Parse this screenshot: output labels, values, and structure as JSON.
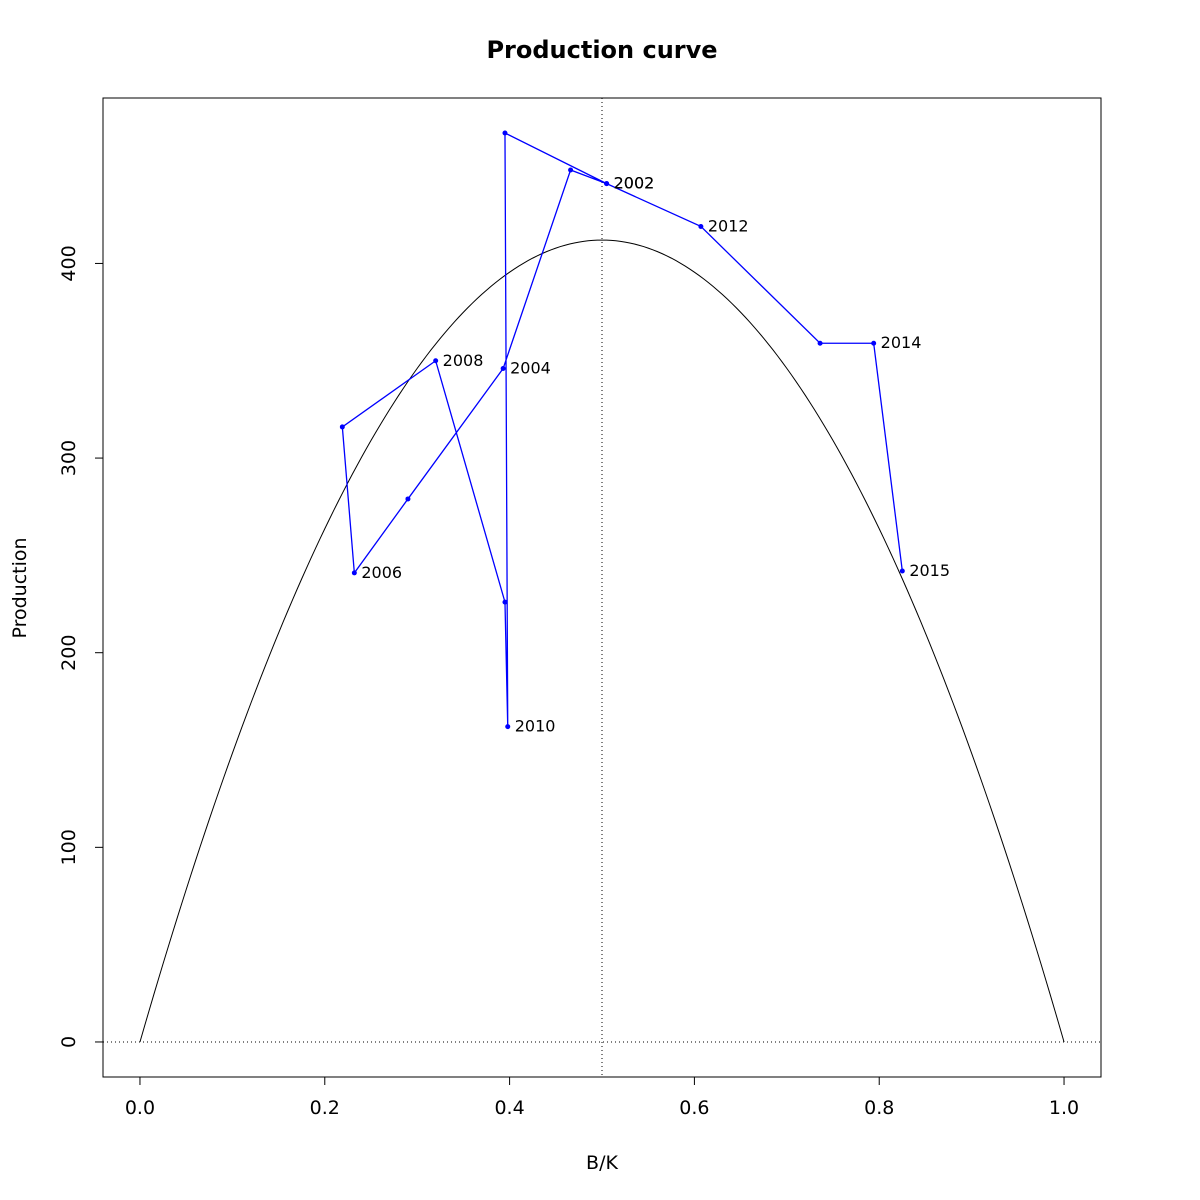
{
  "chart_data": {
    "type": "line",
    "title": "Production curve",
    "xlabel": "B/K",
    "ylabel": "Production",
    "xlim": [
      -0.04,
      1.04
    ],
    "ylim": [
      -18,
      485
    ],
    "x_ticks": [
      0.0,
      0.2,
      0.4,
      0.6,
      0.8,
      1.0
    ],
    "x_tick_labels": [
      "0.0",
      "0.2",
      "0.4",
      "0.6",
      "0.8",
      "1.0"
    ],
    "y_ticks": [
      0,
      100,
      200,
      300,
      400
    ],
    "y_tick_labels": [
      "0",
      "100",
      "200",
      "300",
      "400"
    ],
    "reference_lines": {
      "vertical_x": 0.5,
      "horizontal_y": 0,
      "style": "dotted"
    },
    "production_curve": {
      "x_max": 1.0,
      "peak_x": 0.5,
      "peak_y": 412,
      "color": "#000000"
    },
    "series": [
      {
        "color": "#0000ff",
        "points": [
          {
            "x": 0.505,
            "y": 441,
            "label": "2002"
          },
          {
            "x": 0.466,
            "y": 448,
            "label": ""
          },
          {
            "x": 0.393,
            "y": 346,
            "label": "2004"
          },
          {
            "x": 0.29,
            "y": 279,
            "label": ""
          },
          {
            "x": 0.232,
            "y": 241,
            "label": "2006"
          },
          {
            "x": 0.219,
            "y": 316,
            "label": ""
          },
          {
            "x": 0.32,
            "y": 350,
            "label": "2008"
          },
          {
            "x": 0.395,
            "y": 226,
            "label": ""
          },
          {
            "x": 0.398,
            "y": 162,
            "label": "2010"
          },
          {
            "x": 0.395,
            "y": 467,
            "label": ""
          },
          {
            "x": 0.505,
            "y": 441,
            "label": "2002"
          },
          {
            "x": 0.607,
            "y": 419,
            "label": "2012"
          },
          {
            "x": 0.736,
            "y": 359,
            "label": ""
          },
          {
            "x": 0.794,
            "y": 359,
            "label": "2014"
          },
          {
            "x": 0.825,
            "y": 242,
            "label": "2015"
          }
        ]
      }
    ]
  }
}
